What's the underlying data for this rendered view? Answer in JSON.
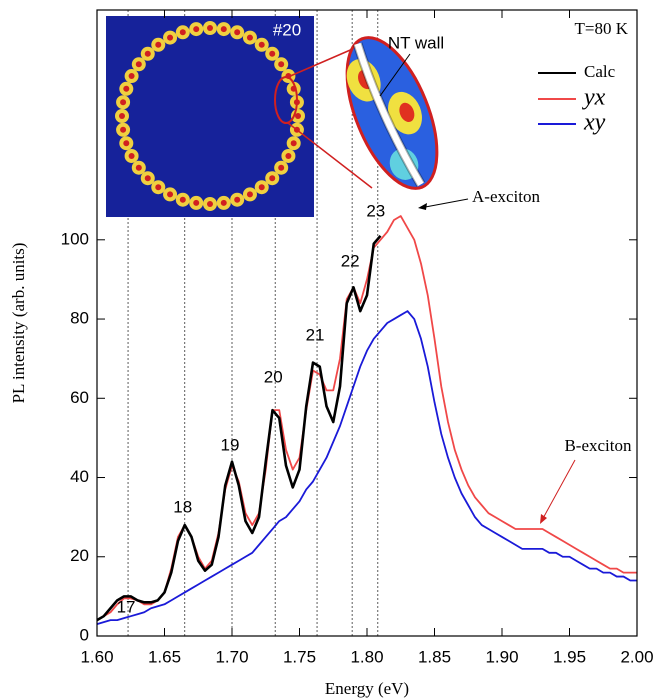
{
  "chart_data": {
    "type": "line",
    "xlabel": "Energy (eV)",
    "ylabel": "PL intensity (arb. units)",
    "xlim": [
      1.6,
      2.0
    ],
    "ylim": [
      0,
      158
    ],
    "xticks": [
      {
        "value": 1.6,
        "label": "1.60"
      },
      {
        "value": 1.65,
        "label": "1.65"
      },
      {
        "value": 1.7,
        "label": "1.70"
      },
      {
        "value": 1.75,
        "label": "1.75"
      },
      {
        "value": 1.8,
        "label": "1.80"
      },
      {
        "value": 1.85,
        "label": "1.85"
      },
      {
        "value": 1.9,
        "label": "1.90"
      },
      {
        "value": 1.95,
        "label": "1.95"
      },
      {
        "value": 2.0,
        "label": "2.00"
      }
    ],
    "yticks": [
      0,
      20,
      40,
      60,
      80,
      100
    ],
    "legend": "upper right",
    "x": [
      1.6,
      1.605,
      1.61,
      1.615,
      1.62,
      1.625,
      1.63,
      1.635,
      1.64,
      1.645,
      1.65,
      1.655,
      1.66,
      1.665,
      1.67,
      1.675,
      1.68,
      1.685,
      1.69,
      1.695,
      1.7,
      1.705,
      1.71,
      1.715,
      1.72,
      1.725,
      1.73,
      1.735,
      1.74,
      1.745,
      1.75,
      1.755,
      1.76,
      1.765,
      1.77,
      1.775,
      1.78,
      1.785,
      1.79,
      1.795,
      1.8,
      1.805,
      1.81,
      1.815,
      1.82,
      1.825,
      1.83,
      1.835,
      1.84,
      1.845,
      1.85,
      1.855,
      1.86,
      1.865,
      1.87,
      1.875,
      1.88,
      1.885,
      1.89,
      1.895,
      1.9,
      1.905,
      1.91,
      1.915,
      1.92,
      1.925,
      1.93,
      1.935,
      1.94,
      1.945,
      1.95,
      1.955,
      1.96,
      1.965,
      1.97,
      1.975,
      1.98,
      1.985,
      1.99,
      1.995,
      2.0
    ],
    "series": [
      {
        "name": "Calc",
        "color": "#000000",
        "values": [
          4,
          5,
          7,
          9,
          10,
          10,
          9,
          8.5,
          8.5,
          9,
          11,
          16,
          24,
          28,
          25,
          19,
          16.5,
          18,
          25,
          38,
          44,
          38,
          29,
          26,
          30,
          44,
          57,
          55,
          43,
          37.5,
          42,
          58,
          69,
          68,
          58,
          54,
          63,
          84,
          88,
          82,
          86,
          99,
          101,
          null,
          null,
          null,
          null,
          null,
          null,
          null,
          null,
          null,
          null,
          null,
          null,
          null,
          null,
          null,
          null,
          null,
          null,
          null,
          null,
          null,
          null,
          null,
          null,
          null,
          null,
          null,
          null,
          null,
          null,
          null,
          null,
          null,
          null,
          null,
          null,
          null,
          null
        ]
      },
      {
        "name": "yx",
        "color": "#f04848",
        "values": [
          4,
          5,
          6,
          8,
          9.5,
          9.5,
          9,
          8,
          8,
          9,
          11,
          17,
          25,
          28,
          25,
          20,
          17,
          19,
          26,
          37,
          43,
          39,
          31,
          28,
          31,
          42,
          57,
          57,
          47,
          42,
          45,
          57,
          67,
          66,
          62,
          62,
          70,
          85,
          88,
          84,
          90,
          98,
          100,
          102,
          105,
          106,
          103,
          100,
          94,
          86,
          75,
          63,
          54,
          47,
          42,
          38,
          35,
          33,
          31,
          30,
          29,
          28,
          27,
          27,
          27,
          27,
          27,
          26,
          25,
          24,
          23,
          22,
          21,
          20,
          19,
          18,
          17,
          17,
          16,
          16,
          16
        ]
      },
      {
        "name": "xy",
        "color": "#1a1ad8",
        "values": [
          3,
          3.5,
          4,
          4,
          4.5,
          5,
          5.5,
          6,
          7,
          7.5,
          8,
          9,
          10,
          11,
          12,
          13,
          14,
          15,
          16,
          17,
          18,
          19,
          20,
          21,
          23,
          25,
          27,
          29,
          30,
          32,
          34,
          37,
          39,
          42,
          45,
          49,
          53,
          58,
          63,
          68,
          72,
          75,
          77,
          79,
          80,
          81,
          82,
          80,
          75,
          68,
          59,
          51,
          45,
          40,
          36,
          33,
          30,
          28,
          27,
          26,
          25,
          24,
          23,
          22,
          22,
          22,
          22,
          21,
          21,
          20,
          20,
          19,
          18,
          17,
          17,
          16,
          16,
          15,
          15,
          14,
          14
        ]
      }
    ],
    "vlines": [
      1.623,
      1.665,
      1.7,
      1.732,
      1.763,
      1.789,
      1.808
    ],
    "peak_labels": [
      "17",
      "18",
      "19",
      "20",
      "21",
      "22",
      "23"
    ],
    "annotations": {
      "temperature": "T=80 K",
      "a_exciton": "A-exciton",
      "b_exciton": "B-exciton",
      "inset_label": "#20",
      "wall": "NT wall"
    }
  }
}
